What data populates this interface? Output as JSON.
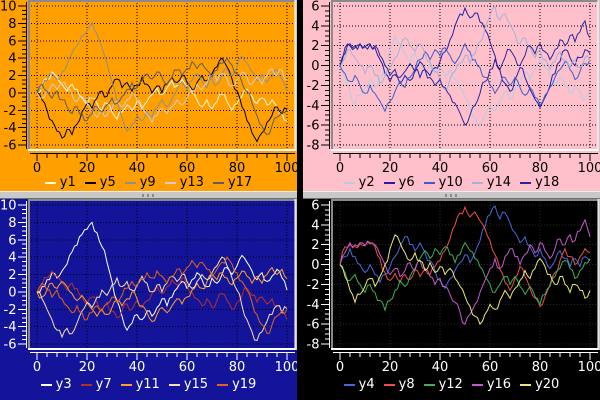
{
  "window": {
    "background": "#000000",
    "sash_color": "#c8c8c8",
    "sash_grip_color": "#8a8a8a",
    "plot_border": {
      "dark": "#8a8a8a",
      "light": "#ffffff",
      "outer": "#c9c9c9"
    }
  },
  "chart_data": {
    "type": "line",
    "layout": "2x2-grid",
    "legend_position": "bottom",
    "grid": "dotted-major",
    "x_start": 0,
    "x_step": 2,
    "x_end": 100,
    "shapes": {
      "L1": [
        0,
        0.6,
        1.4,
        2.2,
        1.6,
        2.4,
        3.2,
        4.6,
        5.4,
        6.6,
        7.2,
        8,
        6.8,
        5.2,
        3.4,
        1.2,
        -1,
        -2.8,
        -4.4,
        -3.6,
        -2.6,
        -3.2,
        -2.2,
        -2.8,
        -1.8,
        -0.8,
        -1.6,
        -0.6,
        0.4,
        1.2,
        0.4,
        1.4,
        2.2,
        1.4,
        0.6,
        1.6,
        1,
        2,
        2.8,
        2,
        3,
        4.2,
        3.4,
        2.4,
        1.4,
        2.2,
        1.2,
        1.8,
        2.6,
        1.6,
        0.2
      ],
      "L2": [
        0,
        -0.8,
        -2,
        -3.2,
        -4.4,
        -5.2,
        -4.2,
        -4.8,
        -3.6,
        -2.2,
        -1.2,
        -1.8,
        -0.6,
        0.2,
        -0.4,
        0.8,
        1.6,
        0.6,
        1.2,
        0.2,
        0.8,
        1.8,
        1,
        0,
        0.8,
        0,
        1,
        1.8,
        1.2,
        2,
        1.2,
        0.4,
        1.2,
        2,
        1.4,
        2.2,
        3,
        4,
        3,
        1.6,
        0.2,
        -1.6,
        -3.2,
        -4.6,
        -5.6,
        -4.6,
        -3.4,
        -2.6,
        -1.6,
        -2.4,
        -1.9
      ],
      "L3": [
        0,
        0.8,
        1.6,
        2.4,
        1.8,
        1,
        0.2,
        1,
        0.4,
        -0.6,
        -1.4,
        -0.6,
        -1.2,
        -2,
        -1.2,
        -2.2,
        -3,
        -2.2,
        -1.4,
        -2,
        -1,
        -1.8,
        -1,
        -0.2,
        0.6,
        -0.2,
        0.6,
        1.4,
        0.8,
        1.6,
        0.8,
        0,
        -0.8,
        -1.6,
        -0.8,
        -1.8,
        -1,
        -0.2,
        -1,
        -2,
        -1.2,
        -0.4,
        0.4,
        -0.4,
        -1.2,
        -0.6,
        -1.4,
        -0.8,
        -1.6,
        -2.4,
        -3.2
      ],
      "L4": [
        0,
        -0.6,
        0.2,
        1,
        0.4,
        1.2,
        0.6,
        -0.2,
        -1,
        -0.4,
        -1.2,
        -2,
        -2.8,
        -2,
        -2.6,
        -1.8,
        -1,
        -1.6,
        -0.8,
        0,
        -0.8,
        -1.6,
        -2.4,
        -3.4,
        -2.6,
        -1.8,
        -2.4,
        -1.6,
        -0.8,
        -1.4,
        -0.6,
        0.2,
        1,
        0.4,
        1.2,
        2,
        1.4,
        2.2,
        1.6,
        0.8,
        1.6,
        2.4,
        1.8,
        1,
        1.8,
        1,
        2,
        2.8,
        2,
        2.6,
        1.5
      ],
      "L5": [
        0,
        1,
        0.2,
        -0.6,
        0.2,
        -0.8,
        -1.6,
        -2.4,
        -1.6,
        -2.4,
        -3.2,
        -2.4,
        -1.6,
        -2.2,
        -1.4,
        -0.6,
        -1.2,
        -0.4,
        0.4,
        1.2,
        0.6,
        1.4,
        2.2,
        1.6,
        2.4,
        1.8,
        1,
        1.8,
        2.6,
        2,
        2.8,
        3.6,
        2.8,
        3.4,
        2.6,
        1.8,
        2.6,
        3.4,
        4,
        3.2,
        2.2,
        1.2,
        0.2,
        -1.2,
        -2.6,
        -3.8,
        -4.8,
        -3.8,
        -2.8,
        -2.2,
        -2
      ],
      "R1": [
        0,
        1.8,
        2,
        1.8,
        2.1,
        1.9,
        2.1,
        1.8,
        0.6,
        -0.8,
        -1.6,
        -0.9,
        -1.8,
        -1,
        -1.5,
        -0.5,
        -1.2,
        -0.4,
        -1,
        -0.2,
        0.4,
        1.4,
        2.6,
        4,
        5.2,
        5.8,
        4.8,
        5.3,
        4.4,
        3.6,
        2.4,
        1,
        -0.5,
        -1.8,
        -2.6,
        -1.4,
        -0.2,
        -1.2,
        -2.4,
        -3.4,
        -4.2,
        -3.2,
        -2,
        -0.8,
        0.4,
        1.6,
        0.8,
        0,
        0.8,
        1.6,
        1.2
      ],
      "R2": [
        0,
        -1.2,
        -2.6,
        -3.8,
        -3,
        -2.2,
        -1.4,
        -2.2,
        -1.2,
        0,
        1.6,
        3,
        2.2,
        1.2,
        0.4,
        1.2,
        0.4,
        -0.6,
        0.2,
        -0.8,
        -0.2,
        -1,
        -0.4,
        -1.4,
        -2.2,
        -3.2,
        -4.2,
        -5.2,
        -6,
        -5,
        -4,
        -4.5,
        -3.6,
        -2.6,
        -3.4,
        -2.4,
        -1.6,
        -0.6,
        -1.4,
        -0.4,
        0.6,
        -0.2,
        -1,
        -2,
        -1.2,
        -2,
        -2.8,
        -2,
        -2.6,
        -3.4,
        -2.6
      ],
      "R3": [
        0,
        -0.8,
        -1.6,
        -1,
        -2,
        -2.8,
        -2,
        -2.8,
        -3.6,
        -4.6,
        -3.6,
        -2.6,
        -1.6,
        -2.2,
        -1.2,
        -0.4,
        0.6,
        1.4,
        0.6,
        1.6,
        1,
        1.8,
        1,
        0.2,
        1,
        2.2,
        1.4,
        0.6,
        -0.2,
        -1.2,
        -2,
        -2.8,
        -2,
        -1.2,
        -2,
        -1.2,
        -2.2,
        -3,
        -2.2,
        -3.2,
        -4,
        -3,
        -2.2,
        -1.2,
        -0.4,
        0.4,
        -0.4,
        -1.4,
        -0.6,
        0.2,
        0.6
      ],
      "R4": [
        0,
        0.8,
        1.6,
        0.8,
        0,
        -0.8,
        0,
        -1,
        -1.8,
        -1,
        -0.2,
        0.8,
        1.8,
        2.8,
        2,
        1.4,
        2.2,
        1.2,
        0.4,
        -0.6,
        -1.6,
        -2.4,
        -1.4,
        -0.6,
        0.2,
        1,
        0.2,
        1.2,
        2.4,
        3.8,
        5,
        5.9,
        4.6,
        5.2,
        4.2,
        3.2,
        2.2,
        2.8,
        1.8,
        0.8,
        1.6,
        0.6,
        -0.4,
        0.4,
        1.4,
        0.6,
        -0.2,
        0.6,
        -0.2,
        0.8,
        0.4
      ],
      "R5": [
        0,
        1.2,
        2.2,
        2,
        2.2,
        1.9,
        2.2,
        2,
        1,
        0,
        -1,
        -0.4,
        -1.2,
        -0.6,
        0.2,
        -0.6,
        0.4,
        -0.4,
        -1.2,
        -2,
        -1.4,
        -2.2,
        -3,
        -3.8,
        -4.8,
        -6,
        -5,
        -4,
        -2.8,
        -1.6,
        -0.4,
        0.6,
        -0.4,
        0.8,
        1.6,
        0.8,
        0,
        1,
        2,
        1.2,
        2.2,
        1.4,
        0.6,
        1.6,
        2.6,
        2,
        3,
        2.4,
        3.4,
        4.5,
        2.8
      ]
    },
    "panels": [
      {
        "id": "top-left",
        "bg": "#ffa000",
        "fg": "#000000",
        "grid_color": "#000000",
        "x": {
          "min": 0,
          "max": 100,
          "major": 20,
          "minor": 4,
          "tick_labels": [
            "0",
            "20",
            "40",
            "60",
            "80",
            "100"
          ]
        },
        "y": {
          "min": -6,
          "max": 10,
          "major": 2,
          "minor": 0.5,
          "tick_labels": [
            "10",
            "8",
            "6",
            "4",
            "2",
            "0",
            "-2",
            "-4",
            "-6"
          ]
        },
        "series": [
          {
            "name": "y1",
            "color": "#fdf8e2",
            "shape": "L3"
          },
          {
            "name": "y5",
            "color": "#000000",
            "shape": "L2"
          },
          {
            "name": "y9",
            "color": "#8f8f8f",
            "shape": "L1"
          },
          {
            "name": "y13",
            "color": "#cdcdcd",
            "shape": "L4"
          },
          {
            "name": "y17",
            "color": "#5e5e5e",
            "shape": "L5"
          }
        ]
      },
      {
        "id": "top-right",
        "bg": "#ffc0cb",
        "fg": "#000000",
        "grid_color": "#000000",
        "x": {
          "min": 0,
          "max": 100,
          "major": 20,
          "minor": 4,
          "tick_labels": [
            "0",
            "20",
            "40",
            "60",
            "80",
            "100"
          ]
        },
        "y": {
          "min": -8,
          "max": 6,
          "major": 2,
          "minor": 0.5,
          "tick_labels": [
            "6",
            "4",
            "2",
            "0",
            "-2",
            "-4",
            "-6",
            "-8"
          ]
        },
        "series": [
          {
            "name": "y2",
            "color": "#aed0e6",
            "shape": "R2"
          },
          {
            "name": "y6",
            "color": "#1f1fa8",
            "shape": "R1"
          },
          {
            "name": "y10",
            "color": "#3a5fcd",
            "shape": "R3"
          },
          {
            "name": "y14",
            "color": "#9fb6da",
            "shape": "R4"
          },
          {
            "name": "y18",
            "color": "#28289c",
            "shape": "R5"
          }
        ]
      },
      {
        "id": "bottom-left",
        "bg": "#14149b",
        "fg": "#ffffff",
        "grid_color": "#000000",
        "x": {
          "min": 0,
          "max": 100,
          "major": 20,
          "minor": 4,
          "tick_labels": [
            "0",
            "20",
            "40",
            "60",
            "80",
            "100"
          ]
        },
        "y": {
          "min": -6,
          "max": 10,
          "major": 2,
          "minor": 0.5,
          "tick_labels": [
            "10",
            "8",
            "6",
            "4",
            "2",
            "0",
            "-2",
            "-4",
            "-6"
          ]
        },
        "series": [
          {
            "name": "y3",
            "color": "#ffffff",
            "shape": "L1"
          },
          {
            "name": "y7",
            "color": "#b03030",
            "shape": "L3"
          },
          {
            "name": "y11",
            "color": "#ff9e2c",
            "shape": "L4"
          },
          {
            "name": "y15",
            "color": "#f5deb3",
            "shape": "L2"
          },
          {
            "name": "y19",
            "color": "#e2641e",
            "shape": "L5"
          }
        ]
      },
      {
        "id": "bottom-right",
        "bg": "#000000",
        "fg": "#ffffff",
        "grid_color": "#262626",
        "x": {
          "min": 0,
          "max": 100,
          "major": 20,
          "minor": 4,
          "tick_labels": [
            "0",
            "20",
            "40",
            "60",
            "80",
            "100"
          ]
        },
        "y": {
          "min": -8,
          "max": 6,
          "major": 2,
          "minor": 0.5,
          "tick_labels": [
            "6",
            "4",
            "2",
            "0",
            "-2",
            "-4",
            "-6",
            "-8"
          ]
        },
        "series": [
          {
            "name": "y4",
            "color": "#4868d8",
            "shape": "R4"
          },
          {
            "name": "y8",
            "color": "#ee5044",
            "shape": "R1"
          },
          {
            "name": "y12",
            "color": "#3fae5a",
            "shape": "R3"
          },
          {
            "name": "y16",
            "color": "#c35ac8",
            "shape": "R5"
          },
          {
            "name": "y20",
            "color": "#e9e876",
            "shape": "R2"
          }
        ]
      }
    ]
  }
}
